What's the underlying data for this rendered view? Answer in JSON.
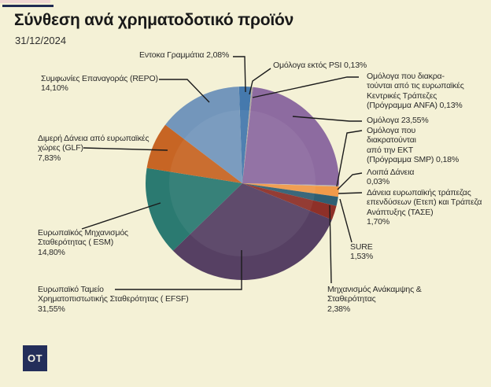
{
  "header": {
    "title": "Σύνθεση ανά χρηματοδοτικό προϊόν",
    "date": "31/12/2024"
  },
  "logo": {
    "text": "OT"
  },
  "colors": {
    "background": "#f4f1d6",
    "accent_navy": "#232e5a",
    "pink_strip": "#efd6d2",
    "leader_line": "#1b1b1b",
    "label_text": "#2a2a2a"
  },
  "chart_data": {
    "type": "pie",
    "title": "Σύνθεση ανά χρηματοδοτικό προϊόν",
    "date": "31/12/2024",
    "unit": "%",
    "start_angle_deg": -2,
    "legend_position": "callout-labels",
    "slices": [
      {
        "id": "entoka",
        "label": "Εντοκα Γραμμάτια",
        "value": 2.08,
        "pct": "2,08%",
        "color": "#4579ad"
      },
      {
        "id": "psi",
        "label": "Ομόλογα εκτός PSI",
        "value": 0.13,
        "pct": "0,13%",
        "color": "#c2b49b"
      },
      {
        "id": "anfa",
        "label": "Ομόλογα που διακρατούνται από τις ευρωπαϊκές Κεντρικές Τράπεζες (Πρόγραμμα ANFA)",
        "value": 0.13,
        "pct": "0,13%",
        "color": "#9e93a2"
      },
      {
        "id": "omologa",
        "label": "Ομόλογα",
        "value": 23.55,
        "pct": "23,55%",
        "color": "#8d6ba0"
      },
      {
        "id": "smp",
        "label": "Ομόλογα που διακρατούνται από την ΕΚΤ (Πρόγραμμα SMP)",
        "value": 0.18,
        "pct": "0,18%",
        "color": "#b3a8ae"
      },
      {
        "id": "loipa",
        "label": "Λοιπά Δάνεια",
        "value": 0.03,
        "pct": "0,03%",
        "color": "#d8c8b2"
      },
      {
        "id": "etep",
        "label": "Δάνεια ευρωπαϊκής τράπεζας επενδύσεων (Ετεπ) και Τράπεζα Ανάπτυξης (ΤΑΣΕ)",
        "value": 1.7,
        "pct": "1,70%",
        "color": "#f09a4a"
      },
      {
        "id": "sure",
        "label": "SURE",
        "value": 1.53,
        "pct": "1,53%",
        "color": "#2f5f73"
      },
      {
        "id": "anakampsi",
        "label": "Μηχανισμός Ανάκαμψης & Σταθερότητας",
        "value": 2.38,
        "pct": "2,38%",
        "color": "#8e3028"
      },
      {
        "id": "efsf",
        "label": "Ευρωπαϊκό Ταμείο Χρηματοπιστωτικής Σταθερότητας ( EFSF)",
        "value": 31.55,
        "pct": "31,55%",
        "color": "#564063"
      },
      {
        "id": "esm",
        "label": "Ευρωπαϊκός Μηχανισμός Σταθερότητας ( ESM)",
        "value": 14.8,
        "pct": "14,80%",
        "color": "#2b7a71"
      },
      {
        "id": "glf",
        "label": "Διμερή Δάνεια από ευρωπαϊκές χώρες (GLF)",
        "value": 7.83,
        "pct": "7,83%",
        "color": "#c76524"
      },
      {
        "id": "repo",
        "label": "Συμφωνίες Επαναγοράς (REPO)",
        "value": 14.1,
        "pct": "14,10%",
        "color": "#7396bb"
      }
    ],
    "labels": {
      "entoka": "Εντοκα Γραμμάτια 2,08%",
      "psi": "Ομόλογα εκτός PSI 0,13%",
      "repo": "Συμφωνίες Επαναγοράς (REPO)\n14,10%",
      "anfa": "Ομόλογα που διακρα-\nτούνται από τις ευρωπαϊκές\nΚεντρικές Τράπεζες\n(Πρόγραμμα ANFA) 0,13%",
      "omologa": "Ομόλογα 23,55%",
      "glf": "Διμερή Δάνεια από ευρωπαϊκές\nχώρες (GLF)\n7,83%",
      "smp": "Ομόλογα που\nδιακρατούνται\nαπό την ΕΚΤ\n(Πρόγραμμα SMP) 0,18%",
      "loipa": "Λοιπά Δάνεια\n0,03%",
      "etep": "Δάνεια ευρωπαϊκής τράπεζας\nεπενδύσεων (Ετεπ) και Τράπεζα\nΑνάπτυξης (ΤΑΣΕ)\n1,70%",
      "sure": "SURE\n1,53%",
      "esm": "Ευρωπαϊκός Μηχανισμός\nΣταθερότητας ( ESM)\n14,80%",
      "anakampsi": "Μηχανισμός Ανάκαμψης &\nΣταθερότητας\n2,38%",
      "efsf": "Ευρωπαϊκό Ταμείο\nΧρηματοπιστωτικής Σταθερότητας ( EFSF)\n31,55%"
    }
  }
}
